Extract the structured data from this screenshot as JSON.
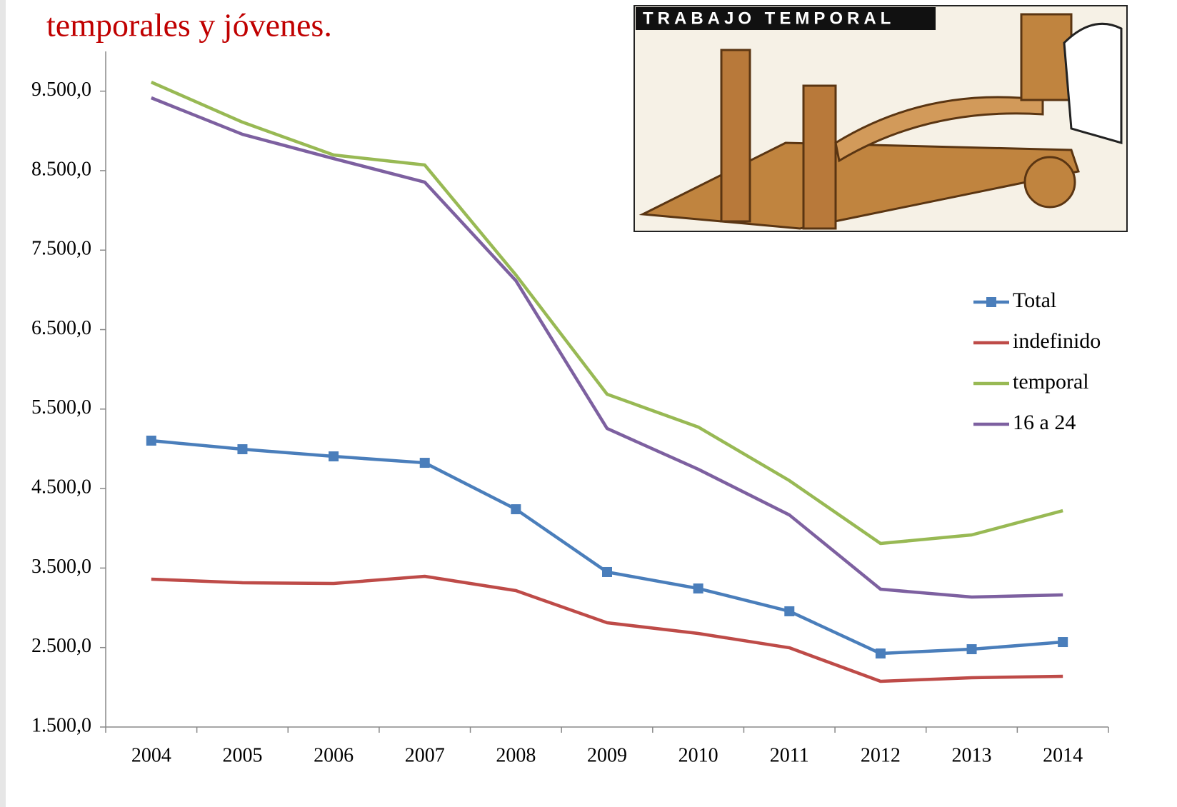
{
  "chart_data": {
    "type": "line",
    "title": "temporales y jóvenes.",
    "image_text": "TRABAJO TEMPORAL",
    "categories": [
      "2004",
      "2005",
      "2006",
      "2007",
      "2008",
      "2009",
      "2010",
      "2011",
      "2012",
      "2013",
      "2014"
    ],
    "series": [
      {
        "name": "Total",
        "color": "#4a7ebb",
        "marker": "square",
        "values": [
          5103,
          4995,
          4905,
          4824,
          4240,
          3450,
          3243,
          2956,
          2425,
          2479,
          2569
        ]
      },
      {
        "name": "indefinido",
        "color": "#be4b48",
        "values": [
          3360,
          3315,
          3306,
          3396,
          3216,
          2812,
          2677,
          2497,
          2075,
          2120,
          2138
        ]
      },
      {
        "name": "temporal",
        "color": "#98b954",
        "values": [
          9613,
          9110,
          8697,
          8571,
          7187,
          5687,
          5274,
          4600,
          3809,
          3917,
          4222
        ]
      },
      {
        "name": "16 a 24",
        "color": "#7d60a0",
        "values": [
          9416,
          8957,
          8652,
          8355,
          7115,
          5256,
          4743,
          4168,
          3234,
          3135,
          3162
        ]
      }
    ],
    "ylim": [
      1500,
      10000
    ],
    "yticks": [
      {
        "value": 1500,
        "label": "1.500,0"
      },
      {
        "value": 2500,
        "label": "2.500,0"
      },
      {
        "value": 3500,
        "label": "3.500,0"
      },
      {
        "value": 4500,
        "label": "4.500,0"
      },
      {
        "value": 5500,
        "label": "5.500,0"
      },
      {
        "value": 6500,
        "label": "6.500,0"
      },
      {
        "value": 7500,
        "label": "7.500,0"
      },
      {
        "value": 8500,
        "label": "8.500,0"
      },
      {
        "value": 9500,
        "label": "9.500,0"
      }
    ],
    "grid": false,
    "legend": "right"
  }
}
